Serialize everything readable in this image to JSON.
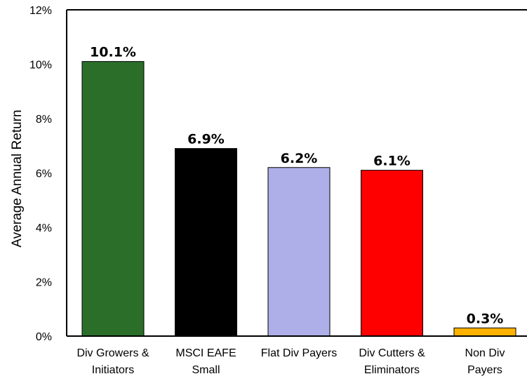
{
  "chart_data": {
    "type": "bar",
    "title": "",
    "xlabel": "",
    "ylabel": "Average Annual Return",
    "ylim": [
      0,
      12
    ],
    "yticks": [
      "0%",
      "2%",
      "4%",
      "6%",
      "8%",
      "10%",
      "12%"
    ],
    "grid": false,
    "legend": "none",
    "categories": [
      [
        "Div Growers &",
        "Initiators"
      ],
      [
        "MSCI EAFE",
        "Small"
      ],
      [
        "Flat Div Payers"
      ],
      [
        "Div Cutters &",
        "Eliminators"
      ],
      [
        "Non Div",
        "Payers"
      ]
    ],
    "values": [
      10.1,
      6.9,
      6.2,
      6.1,
      0.3
    ],
    "data_labels": [
      "10.1%",
      "6.9%",
      "6.2%",
      "6.1%",
      "0.3%"
    ],
    "colors": [
      "#2a6e2a",
      "#000000",
      "#aeaee8",
      "#ff0000",
      "#ffb300"
    ]
  }
}
